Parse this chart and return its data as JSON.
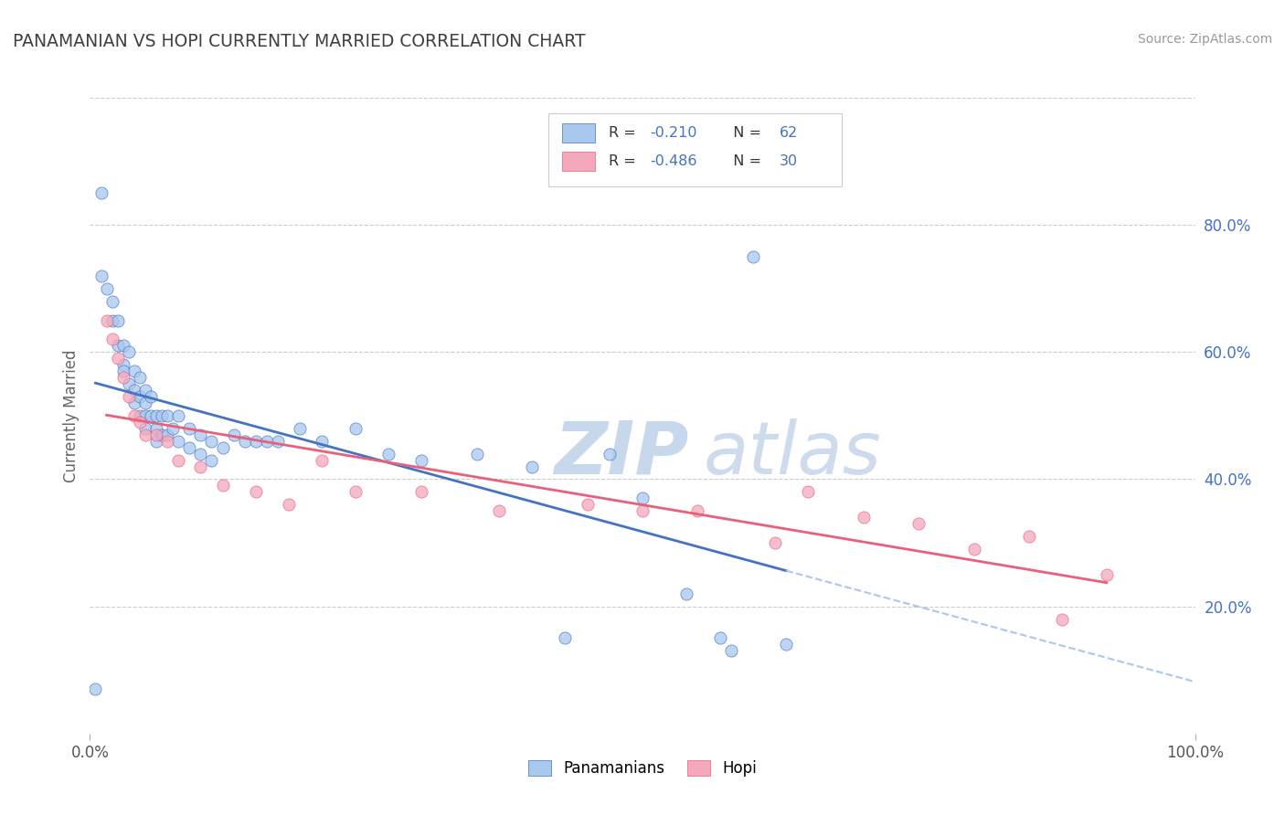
{
  "title": "PANAMANIAN VS HOPI CURRENTLY MARRIED CORRELATION CHART",
  "source": "Source: ZipAtlas.com",
  "ylabel": "Currently Married",
  "xlim": [
    0.0,
    1.0
  ],
  "ylim": [
    0.0,
    1.0
  ],
  "ytick_labels_right": [
    "20.0%",
    "40.0%",
    "60.0%",
    "80.0%"
  ],
  "ytick_positions_right": [
    0.2,
    0.4,
    0.6,
    0.8
  ],
  "blue_color": "#A8C8EE",
  "pink_color": "#F4A8BB",
  "blue_line_color": "#4472C4",
  "pink_line_color": "#E8607A",
  "dashed_line_color": "#A8C8EE",
  "watermark_zip": "ZIP",
  "watermark_atlas": "atlas",
  "legend_label_blue": "Panamanians",
  "legend_label_pink": "Hopi",
  "legend_R_blue": "-0.210",
  "legend_N_blue": "62",
  "legend_R_pink": "-0.486",
  "legend_N_pink": "30",
  "blue_x": [
    0.005,
    0.01,
    0.01,
    0.015,
    0.02,
    0.02,
    0.025,
    0.025,
    0.03,
    0.03,
    0.03,
    0.035,
    0.035,
    0.04,
    0.04,
    0.04,
    0.045,
    0.045,
    0.045,
    0.05,
    0.05,
    0.05,
    0.05,
    0.055,
    0.055,
    0.06,
    0.06,
    0.06,
    0.065,
    0.065,
    0.07,
    0.07,
    0.075,
    0.08,
    0.08,
    0.09,
    0.09,
    0.1,
    0.1,
    0.11,
    0.11,
    0.12,
    0.13,
    0.14,
    0.15,
    0.16,
    0.17,
    0.19,
    0.21,
    0.24,
    0.27,
    0.3,
    0.35,
    0.4,
    0.43,
    0.47,
    0.5,
    0.54,
    0.57,
    0.58,
    0.6,
    0.63
  ],
  "blue_y": [
    0.07,
    0.85,
    0.72,
    0.7,
    0.68,
    0.65,
    0.65,
    0.61,
    0.61,
    0.58,
    0.57,
    0.6,
    0.55,
    0.57,
    0.54,
    0.52,
    0.56,
    0.53,
    0.5,
    0.54,
    0.52,
    0.5,
    0.48,
    0.53,
    0.5,
    0.5,
    0.48,
    0.46,
    0.5,
    0.47,
    0.5,
    0.47,
    0.48,
    0.5,
    0.46,
    0.48,
    0.45,
    0.47,
    0.44,
    0.46,
    0.43,
    0.45,
    0.47,
    0.46,
    0.46,
    0.46,
    0.46,
    0.48,
    0.46,
    0.48,
    0.44,
    0.43,
    0.44,
    0.42,
    0.15,
    0.44,
    0.37,
    0.22,
    0.15,
    0.13,
    0.75,
    0.14
  ],
  "pink_x": [
    0.015,
    0.02,
    0.025,
    0.03,
    0.035,
    0.04,
    0.045,
    0.05,
    0.06,
    0.07,
    0.08,
    0.1,
    0.12,
    0.15,
    0.18,
    0.21,
    0.24,
    0.3,
    0.37,
    0.45,
    0.5,
    0.55,
    0.62,
    0.65,
    0.7,
    0.75,
    0.8,
    0.85,
    0.88,
    0.92
  ],
  "pink_y": [
    0.65,
    0.62,
    0.59,
    0.56,
    0.53,
    0.5,
    0.49,
    0.47,
    0.47,
    0.46,
    0.43,
    0.42,
    0.39,
    0.38,
    0.36,
    0.43,
    0.38,
    0.38,
    0.35,
    0.36,
    0.35,
    0.35,
    0.3,
    0.38,
    0.34,
    0.33,
    0.29,
    0.31,
    0.18,
    0.25
  ]
}
